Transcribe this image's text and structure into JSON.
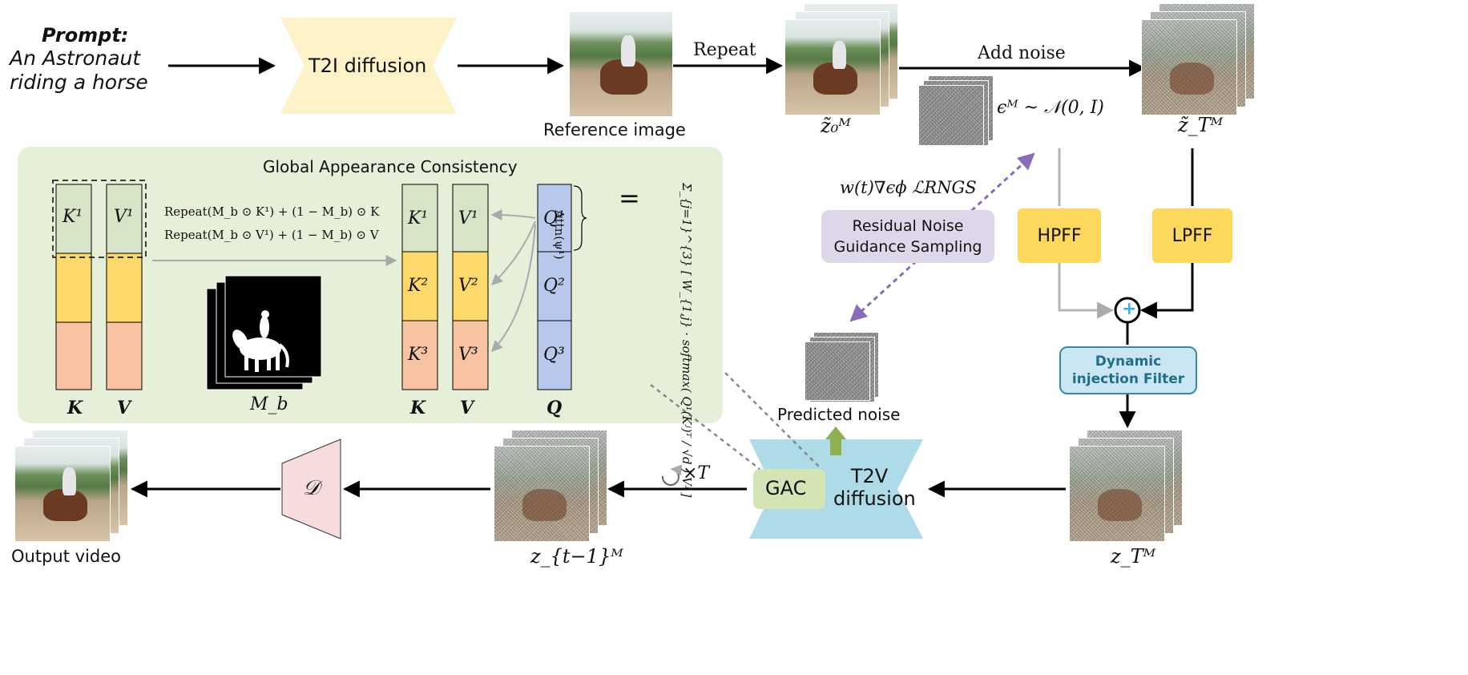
{
  "prompt": {
    "heading": "Prompt:",
    "line1": "An Astronaut",
    "line2": "riding a horse"
  },
  "t2i": {
    "label": "T2I diffusion"
  },
  "reference": {
    "caption": "Reference image"
  },
  "repeat_label": "Repeat",
  "add_noise_label": "Add noise",
  "z0_label": "z̃₀ᴹ",
  "zT_tilde_label": "z̃_Tᴹ",
  "noise_eq": "ϵᴹ ~ 𝒩(0, I)",
  "guidance_eq": "w(t)∇ϵϕ ℒRNGS",
  "rngs": {
    "line1": "Residual Noise",
    "line2": "Guidance Sampling"
  },
  "hpff": "HPFF",
  "lpff": "LPFF",
  "plus": "+",
  "dif": {
    "line1": "Dynamic",
    "line2": "injection Filter"
  },
  "gac_panel": {
    "title": "Global Appearance Consistency",
    "k1": "K¹",
    "v1": "V¹",
    "k_label": "K",
    "v_label": "V",
    "q_label": "Q",
    "formula1": "Repeat(M_b ⊙ K¹) + (1 − M_b) ⊙ K",
    "formula2": "Repeat(M_b ⊙ V¹) + (1 − M_b) ⊙ V",
    "mask_label": "M_b",
    "k_cells": [
      "K¹",
      "K²",
      "K³"
    ],
    "v_cells": [
      "V¹",
      "V²",
      "V³"
    ],
    "q_cells": [
      "Q¹",
      "Q²",
      "Q³"
    ],
    "attn_label": "Attn(ψ¹)",
    "equals": "=",
    "attn_formula": "Σ_{j=1}^{3} [ W_{1,j} · softmax( Q¹(Kʲ)ᵀ / √d ) Vʲ ]"
  },
  "predicted_noise_label": "Predicted noise",
  "t2v": {
    "line1": "T2V",
    "line2": "diffusion"
  },
  "gac_box": "GAC",
  "zT_label": "z_Tᴹ",
  "zt1_label": "z_{t−1}ᴹ",
  "loop_label": "×T",
  "decoder_label": "𝒟",
  "output_caption": "Output video",
  "colors": {
    "t2i_fill": "#fdf2c8",
    "panel_fill": "#e6f0d9",
    "k1_fill": "#d7e4c7",
    "k2_fill": "#fcd96a",
    "k3_fill": "#f7c3a0",
    "q_fill": "#b8c8ec",
    "yellow_box": "#fcd85c",
    "rngs_fill": "#ded7ea",
    "dif_fill": "#c9e6f2",
    "t2v_fill": "#aedbe8",
    "gac_fill": "#d3e5b4",
    "decoder_fill": "#f6dcdc",
    "guidance_arrow": "#8a6bb8",
    "arrow_up": "#8fb050"
  }
}
